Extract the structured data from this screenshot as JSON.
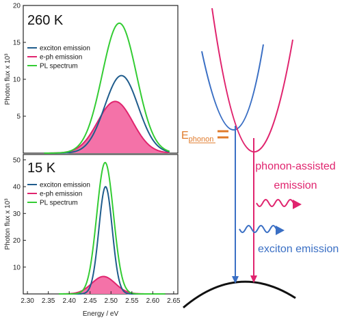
{
  "colors": {
    "exciton": "#1f5c8c",
    "eph": "#e0246e",
    "pl": "#33cc33",
    "eph_fill": "#f472a8",
    "ephonon": "#e07a2a",
    "diagram_blue": "#3a6fc4",
    "diagram_pink": "#e0246e"
  },
  "chart_data": [
    {
      "type": "line",
      "annotation": "260 K",
      "xlabel": "Energy / eV",
      "ylabel": "Photon flux x 10³",
      "ylim": [
        0,
        20
      ],
      "xlim": [
        2.29,
        2.66
      ],
      "yticks": [
        5,
        10,
        15,
        20
      ],
      "legend": "top-left",
      "series": [
        {
          "name": "exciton emission",
          "peak": 2.525,
          "amplitude": 10.5,
          "sigma": 0.04,
          "x_range": [
            2.34,
            2.64
          ]
        },
        {
          "name": "e-ph emission",
          "peak": 2.51,
          "amplitude": 7.0,
          "sigma": 0.042,
          "filled": true,
          "x_range": [
            2.34,
            2.64
          ]
        },
        {
          "name": "PL spectrum",
          "peak": 2.52,
          "amplitude": 17.6,
          "sigma": 0.041,
          "x_range": [
            2.34,
            2.64
          ]
        }
      ]
    },
    {
      "type": "line",
      "annotation": "15 K",
      "xlabel": "Energy / eV",
      "ylabel": "Photon flux x 10³",
      "ylim": [
        0,
        52
      ],
      "xlim": [
        2.29,
        2.66
      ],
      "xticks": [
        2.3,
        2.35,
        2.4,
        2.45,
        2.5,
        2.55,
        2.6,
        2.65
      ],
      "yticks": [
        10,
        20,
        30,
        40,
        50
      ],
      "legend": "top-left",
      "series": [
        {
          "name": "exciton emission",
          "peak": 2.487,
          "amplitude": 40.0,
          "sigma": 0.016,
          "x_range": [
            2.375,
            2.63
          ]
        },
        {
          "name": "e-ph emission",
          "peak": 2.482,
          "amplitude": 6.5,
          "sigma": 0.028,
          "filled": true,
          "x_range": [
            2.375,
            2.63
          ]
        },
        {
          "name": "PL spectrum",
          "peak": 2.486,
          "amplitude": 49.0,
          "sigma": 0.02,
          "x_range": [
            2.375,
            2.63
          ]
        }
      ]
    }
  ],
  "diagram": {
    "ephonon_label": "E",
    "ephonon_sub": "phonon",
    "assisted_label_line1": "phonon-assisted",
    "assisted_label_line2": "emission",
    "exciton_label": "exciton emission"
  }
}
